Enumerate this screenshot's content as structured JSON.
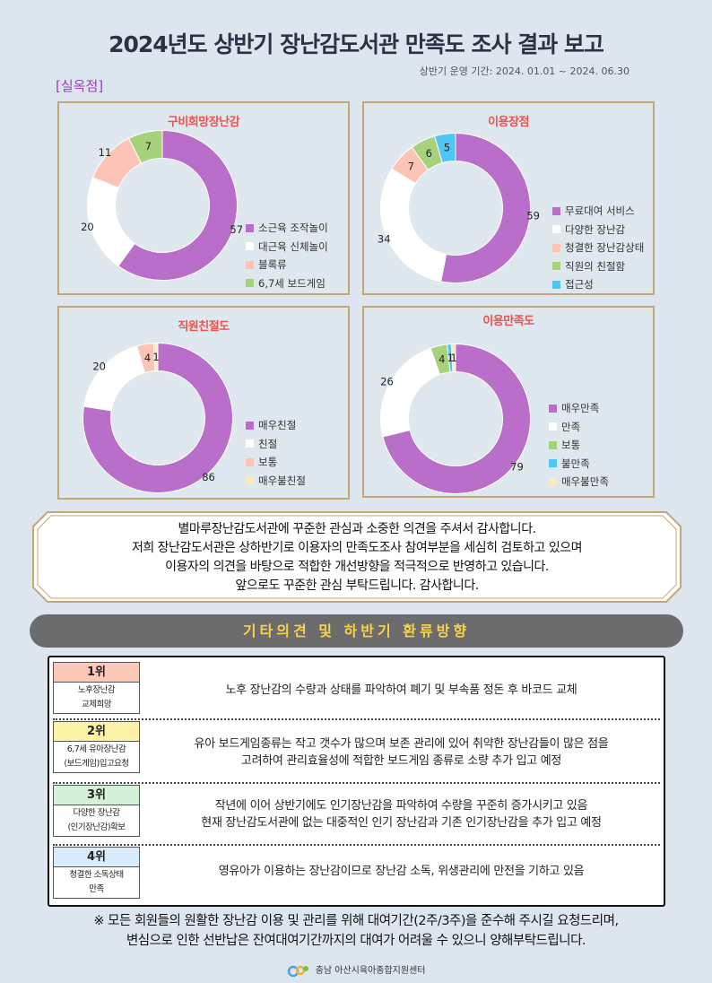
{
  "title": "2024년도 상반기 장난감도서관 만족도 조사 결과 보고",
  "period": "상반기 운영 기간: 2024. 01.01 ~ 2024. 06.30",
  "section_label": "[실옥점]",
  "colors": {
    "purple": "#b96ec9",
    "white": "#ffffff",
    "pink": "#fcc4b6",
    "green": "#a5d27a",
    "blue": "#4fc6f4",
    "cream": "#fde8c4",
    "card_border": "#c2a777",
    "title_red": "#e8544f"
  },
  "chart_data": [
    {
      "type": "pie",
      "title": "구비희망장난감",
      "categories": [
        "소근육 조작놀이",
        "대근육 신체놀이",
        "블록류",
        "6,7세 보드게임"
      ],
      "values": [
        57,
        20,
        11,
        7
      ]
    },
    {
      "type": "pie",
      "title": "이용장점",
      "categories": [
        "무료대여 서비스",
        "다양한 장난감",
        "청결한 장난감상태",
        "직원의 친절함",
        "접근성"
      ],
      "values": [
        59,
        34,
        7,
        6,
        5
      ]
    },
    {
      "type": "pie",
      "title": "직원친절도",
      "categories": [
        "매우친절",
        "친절",
        "보통",
        "매우불친절"
      ],
      "values": [
        86,
        20,
        4,
        1
      ]
    },
    {
      "type": "pie",
      "title": "이용만족도",
      "categories": [
        "매우만족",
        "만족",
        "보통",
        "불만족",
        "매우불만족"
      ],
      "values": [
        79,
        26,
        4,
        1,
        1
      ]
    }
  ],
  "message": [
    "별마루장난감도서관에 꾸준한 관심과 소중한 의견을 주셔서 감사합니다.",
    "저희 장난감도서관은 상하반기로 이용자의 만족도조사 참여부분을 세심히 검토하고 있으며",
    "이용자의 의견을 바탕으로 적합한 개선방향을 적극적으로 반영하고 있습니다.",
    "앞으로도 꾸준한 관심 부탁드립니다. 감사합니다."
  ],
  "banner": "기타의견 및 하반기 환류방향",
  "ranks": [
    {
      "rank": "1위",
      "desc1": "노후장난감",
      "desc2": "교체희망",
      "color": "#fcc8b8",
      "line1": "노후 장난감의 수량과 상태를 파악하여 폐기 및 부속품 정돈 후 바코드 교체",
      "line2": ""
    },
    {
      "rank": "2위",
      "desc1": "6,7세 유아장난감",
      "desc2": "(보드게임)입고요청",
      "color": "#fdf3a8",
      "line1": "유아 보드게임종류는 작고 갯수가 많으며 보존 관리에 있어 취약한 장난감들이 많은 점을",
      "line2": "고려하여 관리효율성에 적합한 보드게임 종류로 소량 추가 입고 예정"
    },
    {
      "rank": "3위",
      "desc1": "다양한 장난감",
      "desc2": "(인기장난감)확보",
      "color": "#d5f2d8",
      "line1": "작년에 이어 상반기에도 인기장난감을 파악하여 수량을 꾸준히 증가시키고 있음",
      "line2": "현재 장난감도서관에 없는 대중적인 인기 장난감과 기존 인기장난감을 추가 입고 예정"
    },
    {
      "rank": "4위",
      "desc1": "청결한 소독상태",
      "desc2": "만족",
      "color": "#d8ecfb",
      "line1": "영유아가 이용하는 장난감이므로 장난감 소독, 위생관리에 만전을 기하고 있음",
      "line2": ""
    }
  ],
  "notice": [
    "※ 모든 회원들의 원활한 장난감 이용 및 관리를 위해 대여기간(2주/3주)을 준수해 주시길 요청드리며,",
    "변심으로 인한 선반납은 잔여대여기간까지의 대여가 어려울 수 있으니 양해부탁드립니다."
  ],
  "footer": "충남 아산시육아종합지원센터"
}
